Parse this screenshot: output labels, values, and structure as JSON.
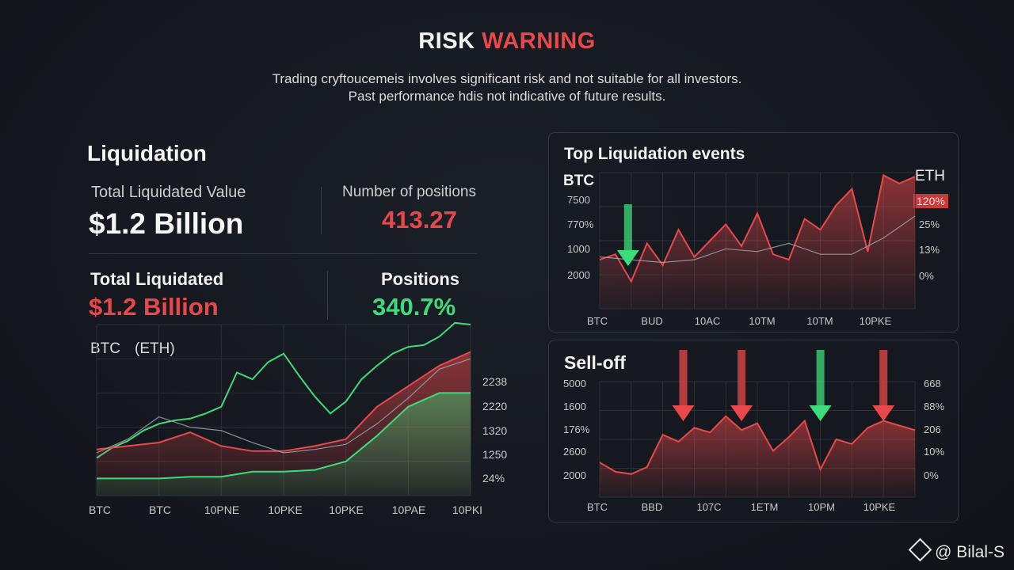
{
  "header": {
    "title_part1": "RISK",
    "title_part2": "WARNING",
    "disclaimer_line1": "Trading cryftoucemeis involves significant risk and not suitable for all investors.",
    "disclaimer_line2": "Past performance hdis not indicative of future results."
  },
  "left": {
    "heading": "Liquidation",
    "total_value_label": "Total Liquidated Value",
    "total_value": "$1.2 Billion",
    "positions_label": "Number of positions",
    "positions_value": "413.27",
    "total_liquidated_label": "Total Liquidated",
    "total_liquidated_value": "$1.2 Billion",
    "positions2_label": "Positions",
    "positions2_value": "340.7%",
    "chart_label_1": "BTC",
    "chart_label_2": "(ETH)"
  },
  "top_panel": {
    "title": "Top Liquidation events",
    "left_series_label": "BTC",
    "right_series_label": "ETH",
    "highlight_value": "120%"
  },
  "bottom_panel": {
    "title": "Sell-off"
  },
  "footer": {
    "icon": "binance-diamond-icon",
    "handle": "@ Bilal-S"
  },
  "colors": {
    "red": "#e8484a",
    "green": "#3ddc7a",
    "gray_line": "#9aa3ad"
  },
  "chart_data": [
    {
      "type": "area",
      "id": "left-chart",
      "x_ticks": [
        "BTC",
        "BTC",
        "10PNE",
        "10PKE",
        "10PKE",
        "10PAE",
        "10PKI"
      ],
      "y_ticks_right": [
        "2238",
        "2220",
        "1320",
        "1250",
        "24%"
      ],
      "xlim": [
        0,
        12
      ],
      "ylim": [
        0,
        100
      ],
      "series": [
        {
          "name": "BTC",
          "style": "green-line",
          "x": [
            0,
            0.5,
            1,
            1.5,
            2,
            2.5,
            3,
            3.5,
            4,
            4.5,
            5,
            5.5,
            6,
            6.5,
            7,
            7.5,
            8,
            8.5,
            9,
            9.5,
            10,
            10.5,
            11,
            11.5,
            12
          ],
          "values": [
            22,
            28,
            32,
            38,
            42,
            44,
            45,
            48,
            52,
            72,
            68,
            78,
            83,
            70,
            58,
            48,
            55,
            68,
            76,
            83,
            87,
            88,
            93,
            101,
            100
          ]
        },
        {
          "name": "red-area",
          "style": "red-area",
          "x": [
            0,
            1,
            2,
            3,
            4,
            5,
            6,
            7,
            8,
            9,
            10,
            11,
            12
          ],
          "values": [
            27,
            29,
            31,
            37,
            29,
            26,
            26,
            29,
            33,
            52,
            64,
            76,
            84
          ]
        },
        {
          "name": "green-area",
          "style": "green-area",
          "x": [
            0,
            1,
            2,
            3,
            4,
            5,
            6,
            7,
            8,
            9,
            10,
            11,
            12
          ],
          "values": [
            10,
            10,
            10,
            11,
            11,
            14,
            14,
            15,
            20,
            35,
            52,
            60,
            60
          ]
        },
        {
          "name": "gray-line",
          "style": "gray-line",
          "x": [
            0,
            1,
            2,
            3,
            4,
            5,
            6,
            7,
            8,
            9,
            10,
            11,
            12
          ],
          "values": [
            25,
            33,
            46,
            40,
            38,
            31,
            25,
            27,
            30,
            42,
            57,
            74,
            80
          ]
        }
      ]
    },
    {
      "type": "area",
      "id": "top-right-chart",
      "x_ticks": [
        "BTC",
        "BUD",
        "10AC",
        "10TM",
        "10TM",
        "10PKE"
      ],
      "y_ticks_left": [
        "7500",
        "770%",
        "1000",
        "2000"
      ],
      "y_ticks_right": [
        "25%",
        "13%",
        "0%"
      ],
      "xlim": [
        0,
        20
      ],
      "ylim": [
        0,
        100
      ],
      "series": [
        {
          "name": "red-area",
          "style": "red-area",
          "x": [
            0,
            1,
            2,
            3,
            4,
            5,
            6,
            7,
            8,
            9,
            10,
            11,
            12,
            13,
            14,
            15,
            16,
            17,
            18,
            19,
            20
          ],
          "values": [
            36,
            40,
            20,
            48,
            32,
            58,
            38,
            50,
            62,
            46,
            70,
            40,
            36,
            66,
            58,
            76,
            88,
            42,
            98,
            92,
            97
          ]
        },
        {
          "name": "gray-line",
          "style": "gray-line",
          "x": [
            0,
            2,
            4,
            6,
            8,
            10,
            12,
            14,
            16,
            18,
            20
          ],
          "values": [
            38,
            36,
            34,
            36,
            44,
            42,
            48,
            40,
            40,
            52,
            68
          ]
        },
        {
          "name": "arrows",
          "style": "annotation",
          "green_down_at": [
            2
          ],
          "red_down_at": []
        }
      ]
    },
    {
      "type": "area",
      "id": "bottom-right-chart",
      "x_ticks": [
        "BTC",
        "BBD",
        "107C",
        "1ETM",
        "10PM",
        "10PKE"
      ],
      "y_ticks_left": [
        "5000",
        "1600",
        "176%",
        "2600",
        "2000"
      ],
      "y_ticks_right": [
        "668",
        "88%",
        "206",
        "10%",
        "0%"
      ],
      "xlim": [
        0,
        20
      ],
      "ylim": [
        0,
        100
      ],
      "series": [
        {
          "name": "red-area",
          "style": "red-area",
          "x": [
            0,
            1,
            2,
            3,
            4,
            5,
            6,
            7,
            8,
            9,
            10,
            11,
            12,
            13,
            14,
            15,
            16,
            17,
            18,
            19,
            20
          ],
          "values": [
            30,
            22,
            20,
            26,
            54,
            48,
            60,
            56,
            70,
            58,
            64,
            40,
            52,
            66,
            24,
            50,
            46,
            60,
            66,
            62,
            58
          ],
          "annotations": {
            "red_down_at": [
              5,
              9,
              18
            ],
            "green_down_at": [
              14
            ]
          }
        }
      ]
    }
  ]
}
